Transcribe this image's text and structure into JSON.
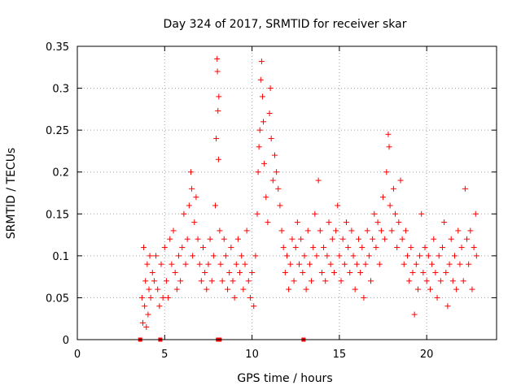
{
  "chart_data": {
    "type": "scatter",
    "title": "Day 324 of 2017, SRMTID for receiver skar",
    "xlabel": "GPS time / hours",
    "ylabel": "SRMTID / TECUs",
    "xlim": [
      0,
      24
    ],
    "ylim": [
      0,
      0.35
    ],
    "xticks": [
      0,
      5,
      10,
      15,
      20
    ],
    "xtick_labels": [
      "0",
      "5",
      "10",
      "15",
      "20"
    ],
    "yticks": [
      0,
      0.05,
      0.1,
      0.15,
      0.2,
      0.25,
      0.3,
      0.35
    ],
    "ytick_labels": [
      "0",
      "0.05",
      "0.1",
      "0.15",
      "0.2",
      "0.25",
      "0.3",
      "0.35"
    ],
    "grid": true,
    "marker": "+",
    "marker_color": "#ff0000",
    "series": [
      {
        "name": "SRMTID",
        "points": [
          [
            3.7,
            0.05
          ],
          [
            3.75,
            0.02
          ],
          [
            3.8,
            0.11
          ],
          [
            3.85,
            0.04
          ],
          [
            3.9,
            0.07
          ],
          [
            3.95,
            0.015
          ],
          [
            4.0,
            0.09
          ],
          [
            4.05,
            0.03
          ],
          [
            4.1,
            0.06
          ],
          [
            4.15,
            0.1
          ],
          [
            4.2,
            0.05
          ],
          [
            4.3,
            0.08
          ],
          [
            4.4,
            0.07
          ],
          [
            4.5,
            0.1
          ],
          [
            4.6,
            0.06
          ],
          [
            4.7,
            0.04
          ],
          [
            4.8,
            0.09
          ],
          [
            4.9,
            0.05
          ],
          [
            5.0,
            0.11
          ],
          [
            5.1,
            0.07
          ],
          [
            5.2,
            0.05
          ],
          [
            5.3,
            0.12
          ],
          [
            5.4,
            0.09
          ],
          [
            5.5,
            0.13
          ],
          [
            5.6,
            0.08
          ],
          [
            5.7,
            0.06
          ],
          [
            5.8,
            0.1
          ],
          [
            5.9,
            0.07
          ],
          [
            6.0,
            0.11
          ],
          [
            6.1,
            0.15
          ],
          [
            6.2,
            0.09
          ],
          [
            6.3,
            0.12
          ],
          [
            6.4,
            0.16
          ],
          [
            6.5,
            0.2
          ],
          [
            6.55,
            0.18
          ],
          [
            6.6,
            0.1
          ],
          [
            6.7,
            0.14
          ],
          [
            6.8,
            0.17
          ],
          [
            6.9,
            0.12
          ],
          [
            7.0,
            0.09
          ],
          [
            7.1,
            0.07
          ],
          [
            7.2,
            0.11
          ],
          [
            7.3,
            0.08
          ],
          [
            7.4,
            0.06
          ],
          [
            7.5,
            0.09
          ],
          [
            7.6,
            0.12
          ],
          [
            7.7,
            0.07
          ],
          [
            7.8,
            0.1
          ],
          [
            7.9,
            0.16
          ],
          [
            7.95,
            0.24
          ],
          [
            8.0,
            0.335
          ],
          [
            8.02,
            0.32
          ],
          [
            8.05,
            0.273
          ],
          [
            8.08,
            0.215
          ],
          [
            8.1,
            0.29
          ],
          [
            8.15,
            0.13
          ],
          [
            8.2,
            0.09
          ],
          [
            8.3,
            0.07
          ],
          [
            8.4,
            0.12
          ],
          [
            8.5,
            0.1
          ],
          [
            8.6,
            0.06
          ],
          [
            8.7,
            0.08
          ],
          [
            8.8,
            0.11
          ],
          [
            8.9,
            0.07
          ],
          [
            9.0,
            0.05
          ],
          [
            9.1,
            0.09
          ],
          [
            9.2,
            0.12
          ],
          [
            9.3,
            0.08
          ],
          [
            9.4,
            0.1
          ],
          [
            9.5,
            0.06
          ],
          [
            9.6,
            0.09
          ],
          [
            9.7,
            0.13
          ],
          [
            9.8,
            0.07
          ],
          [
            9.9,
            0.05
          ],
          [
            10.0,
            0.08
          ],
          [
            10.1,
            0.04
          ],
          [
            10.2,
            0.1
          ],
          [
            10.3,
            0.15
          ],
          [
            10.35,
            0.2
          ],
          [
            10.4,
            0.23
          ],
          [
            10.45,
            0.25
          ],
          [
            10.5,
            0.31
          ],
          [
            10.55,
            0.332
          ],
          [
            10.6,
            0.29
          ],
          [
            10.65,
            0.26
          ],
          [
            10.7,
            0.21
          ],
          [
            10.8,
            0.17
          ],
          [
            10.9,
            0.14
          ],
          [
            11.0,
            0.27
          ],
          [
            11.05,
            0.3
          ],
          [
            11.1,
            0.24
          ],
          [
            11.2,
            0.19
          ],
          [
            11.3,
            0.22
          ],
          [
            11.4,
            0.2
          ],
          [
            11.5,
            0.18
          ],
          [
            11.6,
            0.16
          ],
          [
            11.7,
            0.13
          ],
          [
            11.8,
            0.11
          ],
          [
            11.9,
            0.08
          ],
          [
            12.0,
            0.1
          ],
          [
            12.1,
            0.06
          ],
          [
            12.2,
            0.09
          ],
          [
            12.3,
            0.12
          ],
          [
            12.4,
            0.07
          ],
          [
            12.5,
            0.11
          ],
          [
            12.6,
            0.14
          ],
          [
            12.7,
            0.09
          ],
          [
            12.8,
            0.12
          ],
          [
            12.9,
            0.08
          ],
          [
            13.0,
            0.1
          ],
          [
            13.1,
            0.06
          ],
          [
            13.2,
            0.13
          ],
          [
            13.3,
            0.09
          ],
          [
            13.4,
            0.07
          ],
          [
            13.5,
            0.11
          ],
          [
            13.6,
            0.15
          ],
          [
            13.7,
            0.1
          ],
          [
            13.8,
            0.19
          ],
          [
            13.9,
            0.13
          ],
          [
            14.0,
            0.08
          ],
          [
            14.1,
            0.11
          ],
          [
            14.2,
            0.07
          ],
          [
            14.3,
            0.1
          ],
          [
            14.4,
            0.14
          ],
          [
            14.5,
            0.09
          ],
          [
            14.6,
            0.12
          ],
          [
            14.7,
            0.08
          ],
          [
            14.8,
            0.13
          ],
          [
            14.9,
            0.16
          ],
          [
            15.0,
            0.1
          ],
          [
            15.1,
            0.07
          ],
          [
            15.2,
            0.12
          ],
          [
            15.3,
            0.09
          ],
          [
            15.4,
            0.14
          ],
          [
            15.5,
            0.11
          ],
          [
            15.6,
            0.08
          ],
          [
            15.7,
            0.13
          ],
          [
            15.8,
            0.1
          ],
          [
            15.9,
            0.06
          ],
          [
            16.0,
            0.09
          ],
          [
            16.1,
            0.12
          ],
          [
            16.2,
            0.08
          ],
          [
            16.3,
            0.11
          ],
          [
            16.4,
            0.05
          ],
          [
            16.5,
            0.09
          ],
          [
            16.6,
            0.13
          ],
          [
            16.7,
            0.1
          ],
          [
            16.8,
            0.07
          ],
          [
            16.9,
            0.12
          ],
          [
            17.0,
            0.15
          ],
          [
            17.1,
            0.11
          ],
          [
            17.2,
            0.14
          ],
          [
            17.3,
            0.09
          ],
          [
            17.4,
            0.13
          ],
          [
            17.5,
            0.17
          ],
          [
            17.6,
            0.12
          ],
          [
            17.7,
            0.2
          ],
          [
            17.8,
            0.245
          ],
          [
            17.85,
            0.23
          ],
          [
            17.9,
            0.16
          ],
          [
            18.0,
            0.13
          ],
          [
            18.1,
            0.18
          ],
          [
            18.2,
            0.15
          ],
          [
            18.3,
            0.11
          ],
          [
            18.4,
            0.14
          ],
          [
            18.5,
            0.19
          ],
          [
            18.6,
            0.12
          ],
          [
            18.7,
            0.09
          ],
          [
            18.8,
            0.13
          ],
          [
            18.9,
            0.1
          ],
          [
            19.0,
            0.07
          ],
          [
            19.1,
            0.11
          ],
          [
            19.2,
            0.08
          ],
          [
            19.3,
            0.03
          ],
          [
            19.4,
            0.09
          ],
          [
            19.5,
            0.06
          ],
          [
            19.6,
            0.1
          ],
          [
            19.7,
            0.15
          ],
          [
            19.8,
            0.08
          ],
          [
            19.9,
            0.11
          ],
          [
            20.0,
            0.07
          ],
          [
            20.1,
            0.1
          ],
          [
            20.2,
            0.06
          ],
          [
            20.3,
            0.09
          ],
          [
            20.4,
            0.12
          ],
          [
            20.5,
            0.08
          ],
          [
            20.6,
            0.05
          ],
          [
            20.7,
            0.1
          ],
          [
            20.8,
            0.07
          ],
          [
            20.9,
            0.11
          ],
          [
            21.0,
            0.14
          ],
          [
            21.1,
            0.08
          ],
          [
            21.2,
            0.04
          ],
          [
            21.3,
            0.09
          ],
          [
            21.4,
            0.12
          ],
          [
            21.5,
            0.07
          ],
          [
            21.6,
            0.1
          ],
          [
            21.7,
            0.06
          ],
          [
            21.8,
            0.13
          ],
          [
            21.9,
            0.09
          ],
          [
            22.0,
            0.11
          ],
          [
            22.1,
            0.07
          ],
          [
            22.2,
            0.18
          ],
          [
            22.3,
            0.12
          ],
          [
            22.4,
            0.09
          ],
          [
            22.5,
            0.13
          ],
          [
            22.6,
            0.06
          ],
          [
            22.7,
            0.11
          ],
          [
            22.8,
            0.15
          ],
          [
            22.85,
            0.1
          ]
        ]
      }
    ],
    "gap_markers_x": [
      3.6,
      4.75,
      8.05,
      8.15,
      12.95
    ]
  }
}
